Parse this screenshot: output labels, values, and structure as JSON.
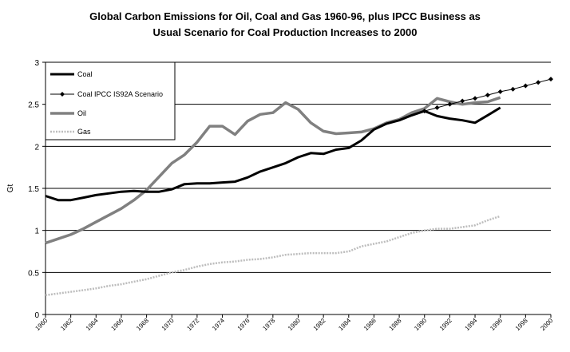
{
  "chart_data": {
    "type": "line",
    "title_lines": [
      "Global Carbon Emissions for Oil, Coal and Gas 1960-96, plus IPCC Business as",
      "Usual  Scenario for Coal Production Increases to 2000"
    ],
    "xlabel": "",
    "ylabel": "Gt",
    "xlim": [
      1960,
      2000
    ],
    "ylim": [
      0,
      3
    ],
    "y_ticks": [
      "0",
      "0.5",
      "1",
      "1.5",
      "2",
      "2.5",
      "3"
    ],
    "x_ticks": [
      "1960",
      "1962",
      "1964",
      "1966",
      "1968",
      "1970",
      "1972",
      "1974",
      "1976",
      "1978",
      "1980",
      "1982",
      "1984",
      "1986",
      "1988",
      "1990",
      "1992",
      "1994",
      "1996",
      "1998",
      "2000"
    ],
    "grid": "horizontal",
    "legend_position": "top-left",
    "series": [
      {
        "name": "Coal",
        "color": "#000000",
        "style": "thick-solid",
        "x": [
          1960,
          1961,
          1962,
          1963,
          1964,
          1965,
          1966,
          1967,
          1968,
          1969,
          1970,
          1971,
          1972,
          1973,
          1974,
          1975,
          1976,
          1977,
          1978,
          1979,
          1980,
          1981,
          1982,
          1983,
          1984,
          1985,
          1986,
          1987,
          1988,
          1989,
          1990,
          1991,
          1992,
          1993,
          1994,
          1995,
          1996
        ],
        "y": [
          1.41,
          1.36,
          1.36,
          1.39,
          1.42,
          1.44,
          1.46,
          1.47,
          1.46,
          1.46,
          1.49,
          1.55,
          1.56,
          1.56,
          1.57,
          1.58,
          1.63,
          1.7,
          1.75,
          1.8,
          1.87,
          1.92,
          1.91,
          1.96,
          1.98,
          2.07,
          2.2,
          2.27,
          2.31,
          2.37,
          2.42,
          2.36,
          2.33,
          2.31,
          2.28,
          2.37,
          2.46
        ]
      },
      {
        "name": "Coal IPCC IS92A Scenario",
        "color": "#000000",
        "style": "thin-diamonds",
        "x": [
          1990,
          1991,
          1992,
          1993,
          1994,
          1995,
          1996,
          1997,
          1998,
          1999,
          2000
        ],
        "y": [
          2.42,
          2.46,
          2.5,
          2.54,
          2.57,
          2.61,
          2.65,
          2.68,
          2.72,
          2.76,
          2.8
        ]
      },
      {
        "name": "Oil",
        "color": "#808080",
        "style": "thick-gray",
        "x": [
          1960,
          1961,
          1962,
          1963,
          1964,
          1965,
          1966,
          1967,
          1968,
          1969,
          1970,
          1971,
          1972,
          1973,
          1974,
          1975,
          1976,
          1977,
          1978,
          1979,
          1980,
          1981,
          1982,
          1983,
          1984,
          1985,
          1986,
          1987,
          1988,
          1989,
          1990,
          1991,
          1992,
          1993,
          1994,
          1995,
          1996
        ],
        "y": [
          0.85,
          0.9,
          0.95,
          1.02,
          1.1,
          1.18,
          1.26,
          1.36,
          1.48,
          1.64,
          1.8,
          1.9,
          2.05,
          2.24,
          2.24,
          2.14,
          2.3,
          2.38,
          2.4,
          2.52,
          2.44,
          2.28,
          2.18,
          2.15,
          2.16,
          2.17,
          2.21,
          2.28,
          2.32,
          2.4,
          2.45,
          2.57,
          2.53,
          2.5,
          2.52,
          2.53,
          2.58
        ]
      },
      {
        "name": "Gas",
        "color": "#bdbdbd",
        "style": "thin-light",
        "x": [
          1960,
          1961,
          1962,
          1963,
          1964,
          1965,
          1966,
          1967,
          1968,
          1969,
          1970,
          1971,
          1972,
          1973,
          1974,
          1975,
          1976,
          1977,
          1978,
          1979,
          1980,
          1981,
          1982,
          1983,
          1984,
          1985,
          1986,
          1987,
          1988,
          1989,
          1990,
          1991,
          1992,
          1993,
          1994,
          1995,
          1996
        ],
        "y": [
          0.23,
          0.25,
          0.27,
          0.29,
          0.31,
          0.34,
          0.36,
          0.39,
          0.42,
          0.46,
          0.5,
          0.53,
          0.57,
          0.6,
          0.62,
          0.63,
          0.65,
          0.66,
          0.68,
          0.71,
          0.72,
          0.73,
          0.73,
          0.73,
          0.75,
          0.81,
          0.84,
          0.87,
          0.92,
          0.97,
          1.0,
          1.02,
          1.02,
          1.04,
          1.06,
          1.12,
          1.17
        ]
      }
    ]
  }
}
